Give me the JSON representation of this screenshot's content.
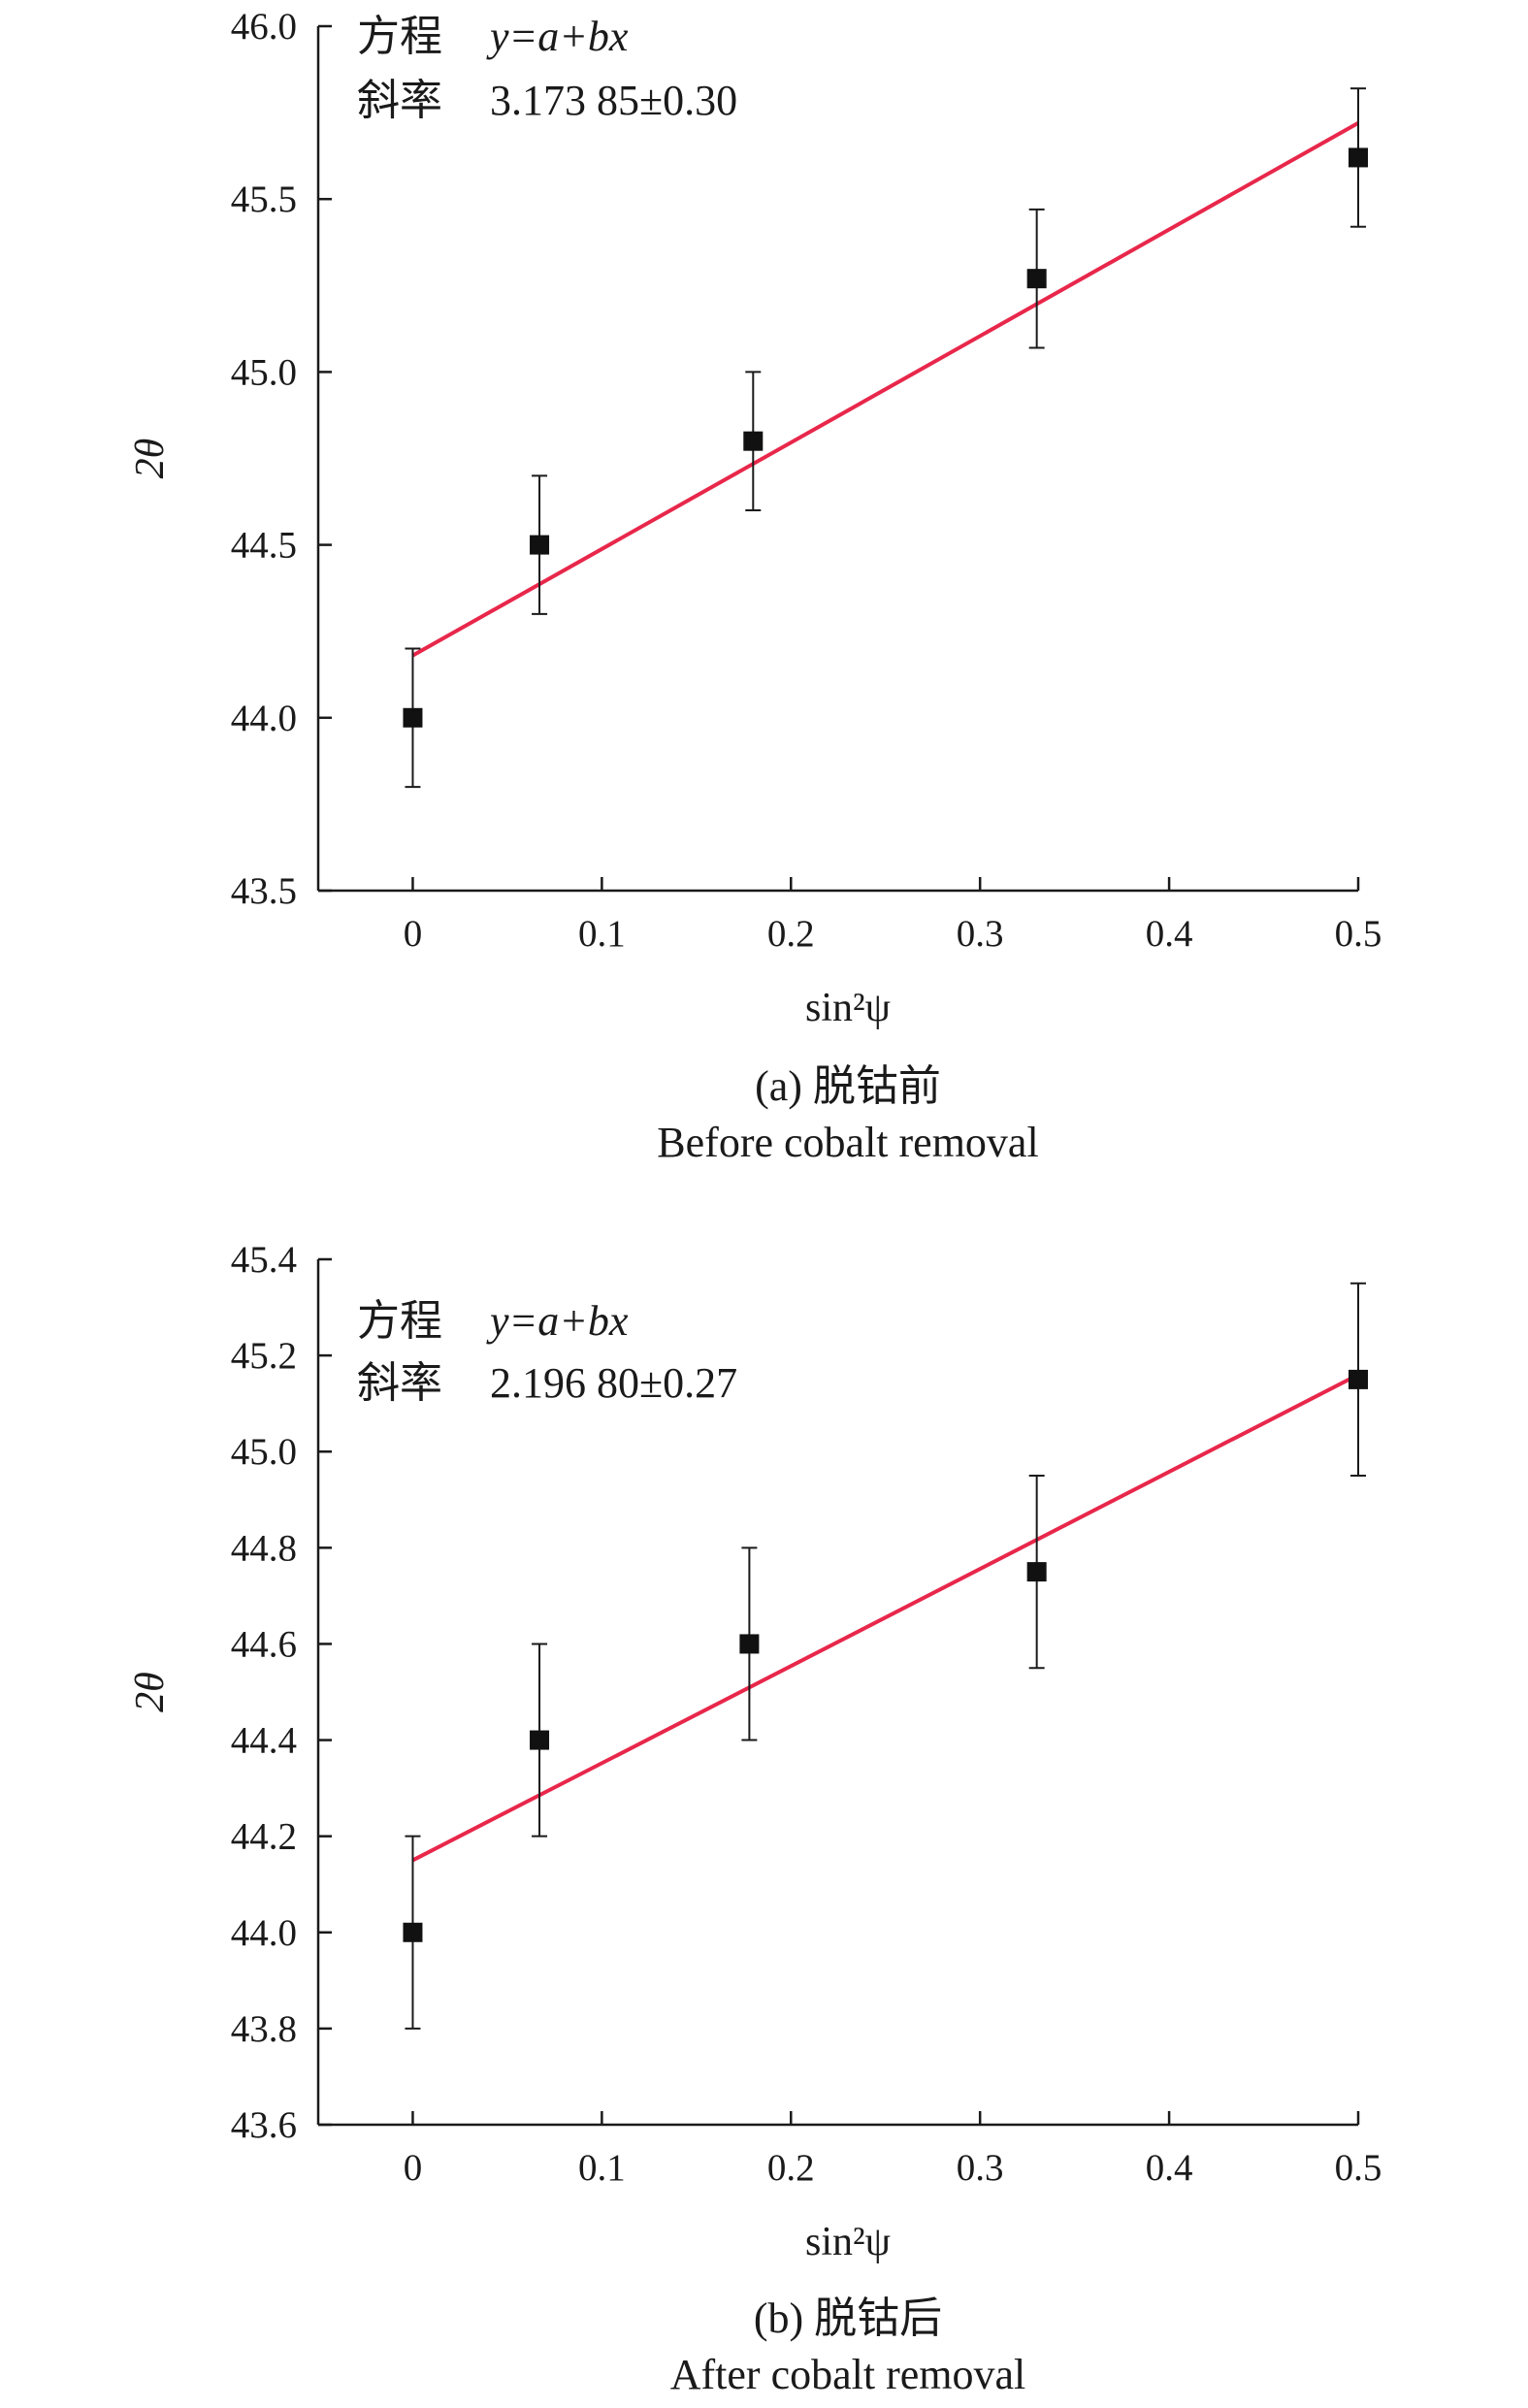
{
  "chart_data": [
    {
      "type": "scatter",
      "caption": "(a) 脱钴前",
      "caption_en": "Before cobalt removal",
      "xlabel": "sin²ψ",
      "ylabel": "2θ",
      "xlim": [
        -0.05,
        0.5
      ],
      "ylim": [
        43.5,
        46.0
      ],
      "xticks": [
        "0",
        "0.1",
        "0.2",
        "0.3",
        "0.4",
        "0.5"
      ],
      "yticks": [
        "43.5",
        "44.0",
        "44.5",
        "45.0",
        "45.5",
        "46.0"
      ],
      "equation_label": "方程",
      "equation": "y=a+bx",
      "slope_label": "斜率",
      "slope": "3.173 85±0.30",
      "fit": {
        "color": "#e8274b",
        "x0": 0,
        "y0": 44.18,
        "x1": 0.5,
        "y1": 45.72
      },
      "points": {
        "x": [
          0,
          0.067,
          0.18,
          0.33,
          0.5
        ],
        "y": [
          44.0,
          44.5,
          44.8,
          45.27,
          45.62
        ],
        "err": [
          0.2,
          0.2,
          0.2,
          0.2,
          0.2
        ]
      }
    },
    {
      "type": "scatter",
      "caption": "(b) 脱钴后",
      "caption_en": "After cobalt removal",
      "xlabel": "sin²ψ",
      "ylabel": "2θ",
      "xlim": [
        -0.05,
        0.5
      ],
      "ylim": [
        43.6,
        45.4
      ],
      "xticks": [
        "0",
        "0.1",
        "0.2",
        "0.3",
        "0.4",
        "0.5"
      ],
      "yticks": [
        "43.6",
        "43.8",
        "44.0",
        "44.2",
        "44.4",
        "44.6",
        "44.8",
        "45.0",
        "45.2",
        "45.4"
      ],
      "equation_label": "方程",
      "equation": "y=a+bx",
      "slope_label": "斜率",
      "slope": "2.196 80±0.27",
      "fit": {
        "color": "#e8274b",
        "x0": 0,
        "y0": 44.15,
        "x1": 0.5,
        "y1": 45.16
      },
      "points": {
        "x": [
          0,
          0.067,
          0.178,
          0.33,
          0.5
        ],
        "y": [
          44.0,
          44.4,
          44.6,
          44.75,
          45.15
        ],
        "err": [
          0.2,
          0.2,
          0.2,
          0.2,
          0.2
        ]
      }
    }
  ]
}
